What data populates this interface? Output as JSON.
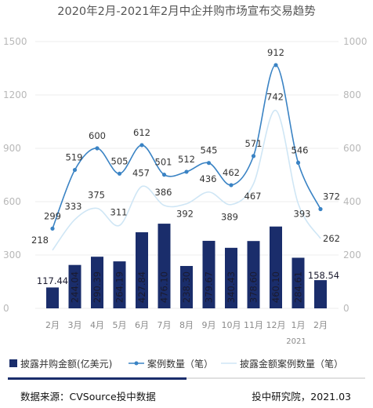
{
  "chart_data": {
    "type": "bar",
    "title": "2020年2月-2021年2月中企并购市场宣布交易趋势",
    "categories": [
      "2月",
      "3月",
      "4月",
      "5月",
      "6月",
      "7月",
      "8月",
      "9月",
      "10月",
      "11月",
      "12月",
      "1月",
      "2月"
    ],
    "year_label": "2021",
    "left_axis": {
      "ylim": [
        0,
        1500
      ],
      "ticks": [
        "0",
        "300",
        "600",
        "900",
        "1200",
        "1500"
      ]
    },
    "right_axis": {
      "ylim": [
        0,
        1000
      ],
      "ticks": [
        "0",
        "200",
        "400",
        "600",
        "800",
        "1000"
      ]
    },
    "grid": true,
    "legend_position": "bottom",
    "series": [
      {
        "name": "披露并购金额(亿美元)",
        "type": "bar",
        "axis": "left",
        "color": "#1a2d6b",
        "values": [
          117.44,
          244.04,
          290.39,
          264.19,
          427.84,
          476.1,
          238.3,
          379.67,
          340.43,
          378.6,
          460.1,
          284.61,
          158.54
        ],
        "labels": [
          "117.44",
          "244.04",
          "290.39",
          "264.19",
          "427.84",
          "476.10",
          "238.30",
          "379.67",
          "340.43",
          "378.60",
          "460.10",
          "284.61",
          "158.54"
        ]
      },
      {
        "name": "案例数量（笔）",
        "type": "line",
        "axis": "right",
        "color": "#3a83c4",
        "values": [
          299,
          519,
          600,
          505,
          612,
          501,
          512,
          545,
          462,
          571,
          912,
          546,
          372
        ],
        "labels": [
          "299",
          "519",
          "600",
          "505",
          "612",
          "501",
          "512",
          "545",
          "462",
          "571",
          "912",
          "546",
          "372"
        ]
      },
      {
        "name": "披露金额案例数量（笔）",
        "type": "line",
        "axis": "right",
        "color": "#cfe6f5",
        "values": [
          218,
          333,
          375,
          311,
          457,
          386,
          392,
          436,
          389,
          467,
          742,
          393,
          262
        ],
        "labels": [
          "218",
          "333",
          "375",
          "311",
          "457",
          "386",
          "392",
          "436",
          "389",
          "467",
          "742",
          "393",
          "262"
        ]
      }
    ]
  },
  "footer": {
    "source": "数据来源：CVSource投中数据",
    "credit": "投中研究院，2021.03"
  }
}
